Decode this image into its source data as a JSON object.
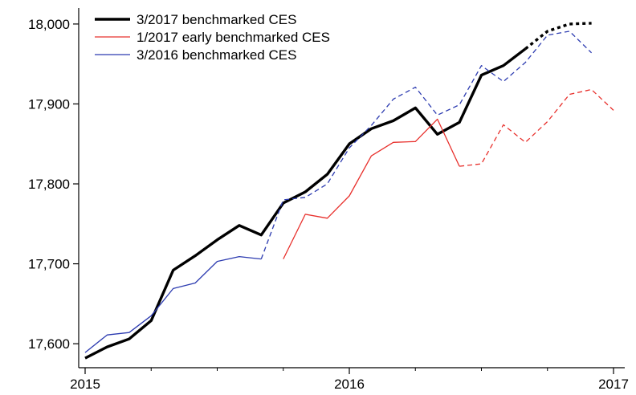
{
  "chart_data": {
    "type": "line",
    "title": "",
    "xlabel": "",
    "ylabel": "",
    "xlim": [
      2015,
      2017
    ],
    "ylim": [
      17570,
      18020
    ],
    "x_ticks": [
      "2015",
      "2016",
      "2017"
    ],
    "y_ticks": [
      "17,600",
      "17,700",
      "17,800",
      "17,900",
      "18,000"
    ],
    "legend_position": "top-left",
    "grid": false,
    "series": [
      {
        "name": "3/2017 benchmarked CES",
        "color": "#000000",
        "points": [
          [
            "2015-01",
            17582
          ],
          [
            "2015-02",
            17596
          ],
          [
            "2015-03",
            17606
          ],
          [
            "2015-04",
            17629
          ],
          [
            "2015-05",
            17692
          ],
          [
            "2015-06",
            17710
          ],
          [
            "2015-07",
            17730
          ],
          [
            "2015-08",
            17748
          ],
          [
            "2015-09",
            17736
          ],
          [
            "2015-10",
            17776
          ],
          [
            "2015-11",
            17790
          ],
          [
            "2015-12",
            17812
          ],
          [
            "2016-01",
            17850
          ],
          [
            "2016-02",
            17869
          ],
          [
            "2016-03",
            17879
          ],
          [
            "2016-04",
            17895
          ],
          [
            "2016-05",
            17862
          ],
          [
            "2016-06",
            17877
          ],
          [
            "2016-07",
            17936
          ],
          [
            "2016-08",
            17948
          ],
          [
            "2016-09",
            17969
          ],
          [
            "2016-10",
            17991
          ],
          [
            "2016-11",
            18000
          ],
          [
            "2016-12",
            18001
          ]
        ],
        "dashed_from": "2016-09"
      },
      {
        "name": "1/2017 early benchmarked CES",
        "color": "#e8302c",
        "points": [
          [
            "2015-10",
            17706
          ],
          [
            "2015-11",
            17762
          ],
          [
            "2015-12",
            17757
          ],
          [
            "2016-01",
            17785
          ],
          [
            "2016-02",
            17835
          ],
          [
            "2016-03",
            17852
          ],
          [
            "2016-04",
            17853
          ],
          [
            "2016-05",
            17881
          ],
          [
            "2016-06",
            17822
          ],
          [
            "2016-07",
            17825
          ],
          [
            "2016-08",
            17874
          ],
          [
            "2016-09",
            17852
          ],
          [
            "2016-10",
            17878
          ],
          [
            "2016-11",
            17912
          ],
          [
            "2016-12",
            17918
          ],
          [
            "2017-01",
            17892
          ]
        ],
        "dashed_from": "2016-06"
      },
      {
        "name": "3/2016 benchmarked CES",
        "color": "#2c3bb0",
        "points": [
          [
            "2015-01",
            17589
          ],
          [
            "2015-02",
            17611
          ],
          [
            "2015-03",
            17614
          ],
          [
            "2015-04",
            17635
          ],
          [
            "2015-05",
            17669
          ],
          [
            "2015-06",
            17676
          ],
          [
            "2015-07",
            17703
          ],
          [
            "2015-08",
            17709
          ],
          [
            "2015-09",
            17706
          ],
          [
            "2015-10",
            17780
          ],
          [
            "2015-11",
            17783
          ],
          [
            "2015-12",
            17800
          ],
          [
            "2016-01",
            17845
          ],
          [
            "2016-02",
            17873
          ],
          [
            "2016-03",
            17906
          ],
          [
            "2016-04",
            17921
          ],
          [
            "2016-05",
            17886
          ],
          [
            "2016-06",
            17899
          ],
          [
            "2016-07",
            17948
          ],
          [
            "2016-08",
            17928
          ],
          [
            "2016-09",
            17952
          ],
          [
            "2016-10",
            17986
          ],
          [
            "2016-11",
            17991
          ],
          [
            "2016-12",
            17964
          ]
        ],
        "dashed_from": "2015-09"
      }
    ]
  }
}
